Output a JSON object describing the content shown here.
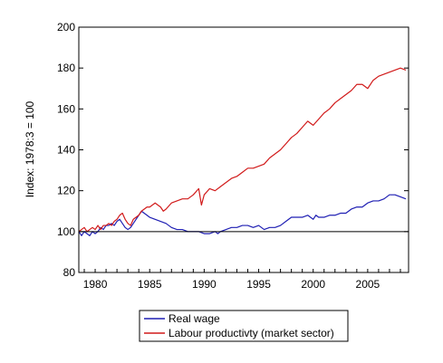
{
  "chart_data": {
    "type": "line",
    "ylabel": "Index: 1978:3 = 100",
    "xlabel": "",
    "xlim": [
      1978.5,
      2008.75
    ],
    "ylim": [
      80,
      200
    ],
    "y_ticks": [
      "80",
      "100",
      "120",
      "140",
      "160",
      "180",
      "200"
    ],
    "x_ticks": [
      "1980",
      "1985",
      "1990",
      "1995",
      "2000",
      "2005"
    ],
    "reference_line": 100,
    "grid": false,
    "legend_position": "bottom-center",
    "series": [
      {
        "name": "Real wage",
        "color": "#1f1fb3",
        "points": [
          [
            1978.5,
            100
          ],
          [
            1978.75,
            98
          ],
          [
            1979.0,
            100
          ],
          [
            1979.25,
            99
          ],
          [
            1979.5,
            98
          ],
          [
            1979.75,
            100
          ],
          [
            1980.0,
            99
          ],
          [
            1980.25,
            100
          ],
          [
            1980.5,
            102
          ],
          [
            1980.75,
            101
          ],
          [
            1981.0,
            103
          ],
          [
            1981.25,
            103
          ],
          [
            1981.5,
            104
          ],
          [
            1981.75,
            103
          ],
          [
            1982.0,
            105
          ],
          [
            1982.25,
            106
          ],
          [
            1982.5,
            104
          ],
          [
            1982.75,
            102
          ],
          [
            1983.0,
            101
          ],
          [
            1983.25,
            102
          ],
          [
            1983.5,
            104
          ],
          [
            1983.75,
            106
          ],
          [
            1984.0,
            108
          ],
          [
            1984.25,
            110
          ],
          [
            1984.5,
            109
          ],
          [
            1984.75,
            108
          ],
          [
            1985.0,
            107
          ],
          [
            1985.5,
            106
          ],
          [
            1986.0,
            105
          ],
          [
            1986.5,
            104
          ],
          [
            1987.0,
            102
          ],
          [
            1987.5,
            101
          ],
          [
            1988.0,
            101
          ],
          [
            1988.5,
            100
          ],
          [
            1989.0,
            100
          ],
          [
            1989.5,
            100
          ],
          [
            1990.0,
            99
          ],
          [
            1990.5,
            99
          ],
          [
            1991.0,
            100
          ],
          [
            1991.25,
            99
          ],
          [
            1991.5,
            100
          ],
          [
            1992.0,
            101
          ],
          [
            1992.5,
            102
          ],
          [
            1993.0,
            102
          ],
          [
            1993.5,
            103
          ],
          [
            1994.0,
            103
          ],
          [
            1994.5,
            102
          ],
          [
            1995.0,
            103
          ],
          [
            1995.5,
            101
          ],
          [
            1996.0,
            102
          ],
          [
            1996.5,
            102
          ],
          [
            1997.0,
            103
          ],
          [
            1997.5,
            105
          ],
          [
            1998.0,
            107
          ],
          [
            1998.5,
            107
          ],
          [
            1999.0,
            107
          ],
          [
            1999.5,
            108
          ],
          [
            2000.0,
            106
          ],
          [
            2000.25,
            108
          ],
          [
            2000.5,
            107
          ],
          [
            2001.0,
            107
          ],
          [
            2001.5,
            108
          ],
          [
            2002.0,
            108
          ],
          [
            2002.5,
            109
          ],
          [
            2003.0,
            109
          ],
          [
            2003.5,
            111
          ],
          [
            2004.0,
            112
          ],
          [
            2004.5,
            112
          ],
          [
            2005.0,
            114
          ],
          [
            2005.5,
            115
          ],
          [
            2006.0,
            115
          ],
          [
            2006.5,
            116
          ],
          [
            2007.0,
            118
          ],
          [
            2007.5,
            118
          ],
          [
            2008.0,
            117
          ],
          [
            2008.5,
            116
          ]
        ]
      },
      {
        "name": "Labour productivty (market sector)",
        "color": "#d11a1a",
        "points": [
          [
            1978.5,
            100
          ],
          [
            1978.75,
            101
          ],
          [
            1979.0,
            102
          ],
          [
            1979.25,
            100
          ],
          [
            1979.5,
            101
          ],
          [
            1979.75,
            102
          ],
          [
            1980.0,
            101
          ],
          [
            1980.25,
            103
          ],
          [
            1980.5,
            101
          ],
          [
            1980.75,
            103
          ],
          [
            1981.0,
            103
          ],
          [
            1981.25,
            104
          ],
          [
            1981.5,
            103
          ],
          [
            1981.75,
            105
          ],
          [
            1982.0,
            106
          ],
          [
            1982.25,
            108
          ],
          [
            1982.5,
            109
          ],
          [
            1982.75,
            106
          ],
          [
            1983.0,
            104
          ],
          [
            1983.25,
            103
          ],
          [
            1983.5,
            106
          ],
          [
            1983.75,
            107
          ],
          [
            1984.0,
            108
          ],
          [
            1984.25,
            110
          ],
          [
            1984.5,
            111
          ],
          [
            1984.75,
            112
          ],
          [
            1985.0,
            112
          ],
          [
            1985.5,
            114
          ],
          [
            1986.0,
            112
          ],
          [
            1986.25,
            110
          ],
          [
            1986.5,
            111
          ],
          [
            1987.0,
            114
          ],
          [
            1987.5,
            115
          ],
          [
            1988.0,
            116
          ],
          [
            1988.5,
            116
          ],
          [
            1989.0,
            118
          ],
          [
            1989.5,
            121
          ],
          [
            1989.75,
            113
          ],
          [
            1990.0,
            118
          ],
          [
            1990.5,
            121
          ],
          [
            1991.0,
            120
          ],
          [
            1991.5,
            122
          ],
          [
            1992.0,
            124
          ],
          [
            1992.5,
            126
          ],
          [
            1993.0,
            127
          ],
          [
            1993.5,
            129
          ],
          [
            1994.0,
            131
          ],
          [
            1994.5,
            131
          ],
          [
            1995.0,
            132
          ],
          [
            1995.5,
            133
          ],
          [
            1996.0,
            136
          ],
          [
            1996.5,
            138
          ],
          [
            1997.0,
            140
          ],
          [
            1997.5,
            143
          ],
          [
            1998.0,
            146
          ],
          [
            1998.5,
            148
          ],
          [
            1999.0,
            151
          ],
          [
            1999.5,
            154
          ],
          [
            2000.0,
            152
          ],
          [
            2000.5,
            155
          ],
          [
            2001.0,
            158
          ],
          [
            2001.5,
            160
          ],
          [
            2002.0,
            163
          ],
          [
            2002.5,
            165
          ],
          [
            2003.0,
            167
          ],
          [
            2003.5,
            169
          ],
          [
            2004.0,
            172
          ],
          [
            2004.5,
            172
          ],
          [
            2005.0,
            170
          ],
          [
            2005.5,
            174
          ],
          [
            2006.0,
            176
          ],
          [
            2006.5,
            177
          ],
          [
            2007.0,
            178
          ],
          [
            2007.5,
            179
          ],
          [
            2008.0,
            180
          ],
          [
            2008.5,
            179
          ]
        ]
      }
    ]
  }
}
